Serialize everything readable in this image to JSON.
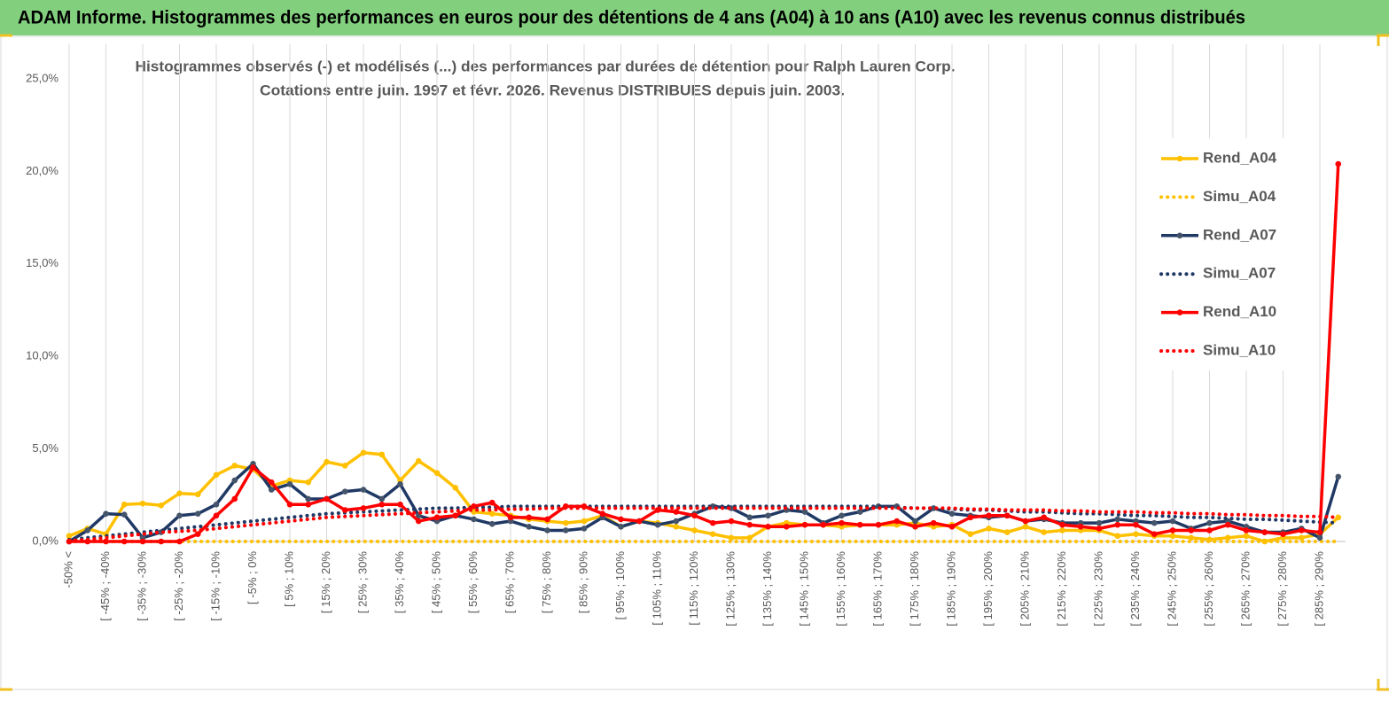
{
  "chart_data": {
    "type": "line",
    "title": "ADAM Informe. Histogrammes des performances en euros pour des détentions de 4 ans (A04) à 10 ans (A10) avec les revenus connus distribués",
    "subtitle": [
      "Histogrammes observés (-) et modélisés (...) des performances par durées de détention pour Ralph Lauren Corp.",
      "Cotations entre juin. 1997 et févr. 2026. Revenus DISTRIBUES depuis juin. 2003."
    ],
    "categories": [
      "-50% <",
      null,
      "[ -45% ; -40%",
      null,
      "[ -35% ; -30%",
      null,
      "[ -25% ; -20%",
      null,
      "[ -15% ; -10%",
      null,
      "[ -5% ; 0%",
      null,
      "[ 5% ; 10%",
      null,
      "[ 15% ; 20%",
      null,
      "[ 25% ; 30%",
      null,
      "[ 35% ; 40%",
      null,
      "[ 45% ; 50%",
      null,
      "[ 55% ; 60%",
      null,
      "[ 65% ; 70%",
      null,
      "[ 75% ; 80%",
      null,
      "[ 85% ; 90%",
      null,
      "[ 95% ; 100%",
      null,
      "[ 105% ; 110%",
      null,
      "[ 115% ; 120%",
      null,
      "[ 125% ; 130%",
      null,
      "[ 135% ; 140%",
      null,
      "[ 145% ; 150%",
      null,
      "[ 155% ; 160%",
      null,
      "[ 165% ; 170%",
      null,
      "[ 175% ; 180%",
      null,
      "[ 185% ; 190%",
      null,
      "[ 195% ; 200%",
      null,
      "[ 205% ; 210%",
      null,
      "[ 215% ; 220%",
      null,
      "[ 225% ; 230%",
      null,
      "[ 235% ; 240%",
      null,
      "[ 245% ; 250%",
      null,
      "[ 255% ; 260%",
      null,
      "[ 265% ; 270%",
      null,
      "[ 275% ; 280%",
      null,
      "[ 285% ; 290%",
      null
    ],
    "ylim": [
      0,
      25
    ],
    "yticks": [
      {
        "value": 0,
        "label": "0,0%"
      },
      {
        "value": 5,
        "label": "5,0%"
      },
      {
        "value": 10,
        "label": "10,0%"
      },
      {
        "value": 15,
        "label": "15,0%"
      },
      {
        "value": 20,
        "label": "20,0%"
      },
      {
        "value": 25,
        "label": "25,0%"
      }
    ],
    "grid": "x",
    "legend": "right",
    "series": [
      {
        "name": "Rend_A04",
        "color": "#ffc000",
        "style": "solid",
        "marker": true,
        "values": [
          0.3,
          0.7,
          0.4,
          2.0,
          2.05,
          1.95,
          2.6,
          2.55,
          3.6,
          4.1,
          3.9,
          3.0,
          3.3,
          3.2,
          4.3,
          4.1,
          4.8,
          4.7,
          3.3,
          4.35,
          3.7,
          2.9,
          1.6,
          1.5,
          1.4,
          1.2,
          1.1,
          1.0,
          1.1,
          1.4,
          0.8,
          1.1,
          1.0,
          0.8,
          0.6,
          0.4,
          0.2,
          0.2,
          0.8,
          1.0,
          0.9,
          0.9,
          0.8,
          0.9,
          0.9,
          0.9,
          1.0,
          0.8,
          0.9,
          0.4,
          0.7,
          0.5,
          0.8,
          0.5,
          0.6,
          0.6,
          0.6,
          0.3,
          0.4,
          0.3,
          0.3,
          0.2,
          0.1,
          0.2,
          0.3,
          0.0,
          0.2,
          0.2,
          0.4,
          1.3
        ]
      },
      {
        "name": "Simu_A04",
        "color": "#ffc000",
        "style": "dotted",
        "marker": false,
        "values": [
          0,
          0,
          0,
          0,
          0,
          0,
          0,
          0,
          0,
          0,
          0,
          0,
          0,
          0,
          0,
          0,
          0,
          0,
          0,
          0,
          0,
          0,
          0,
          0,
          0,
          0,
          0,
          0,
          0,
          0,
          0,
          0,
          0,
          0,
          0,
          0,
          0,
          0,
          0,
          0,
          0,
          0,
          0,
          0,
          0,
          0,
          0,
          0,
          0,
          0,
          0,
          0,
          0,
          0,
          0,
          0,
          0,
          0,
          0,
          0,
          0,
          0,
          0,
          0,
          0,
          0,
          0,
          0,
          0,
          0
        ]
      },
      {
        "name": "Rend_A07",
        "color": "#1f3864",
        "style": "solid",
        "marker": true,
        "values": [
          0.0,
          0.6,
          1.5,
          1.45,
          0.2,
          0.5,
          1.4,
          1.5,
          2.0,
          3.3,
          4.2,
          2.8,
          3.1,
          2.3,
          2.3,
          2.7,
          2.8,
          2.3,
          3.1,
          1.4,
          1.1,
          1.4,
          1.2,
          0.95,
          1.1,
          0.8,
          0.6,
          0.6,
          0.7,
          1.3,
          0.8,
          1.1,
          0.9,
          1.1,
          1.5,
          1.9,
          1.8,
          1.3,
          1.4,
          1.7,
          1.6,
          1.0,
          1.4,
          1.6,
          1.9,
          1.9,
          1.1,
          1.8,
          1.5,
          1.4,
          1.3,
          1.4,
          1.1,
          1.2,
          1.0,
          1.0,
          1.0,
          1.2,
          1.1,
          1.0,
          1.1,
          0.7,
          1.0,
          1.1,
          0.8,
          0.5,
          0.5,
          0.7,
          0.2,
          3.5
        ]
      },
      {
        "name": "Simu_A07",
        "color": "#1f3864",
        "style": "dotted",
        "marker": false,
        "values": [
          0.1,
          0.2,
          0.3,
          0.4,
          0.5,
          0.6,
          0.7,
          0.8,
          0.9,
          1.0,
          1.1,
          1.2,
          1.3,
          1.4,
          1.5,
          1.55,
          1.6,
          1.65,
          1.7,
          1.75,
          1.8,
          1.8,
          1.85,
          1.85,
          1.9,
          1.9,
          1.9,
          1.9,
          1.9,
          1.9,
          1.9,
          1.9,
          1.9,
          1.9,
          1.9,
          1.9,
          1.9,
          1.9,
          1.9,
          1.9,
          1.9,
          1.9,
          1.9,
          1.9,
          1.9,
          1.85,
          1.8,
          1.8,
          1.75,
          1.7,
          1.7,
          1.65,
          1.6,
          1.6,
          1.55,
          1.5,
          1.5,
          1.45,
          1.4,
          1.4,
          1.35,
          1.3,
          1.3,
          1.25,
          1.2,
          1.2,
          1.15,
          1.1,
          1.05,
          1.0
        ]
      },
      {
        "name": "Rend_A10",
        "color": "#ff0000",
        "style": "solid",
        "marker": true,
        "values": [
          0,
          0,
          0,
          0,
          0,
          0,
          0,
          0.4,
          1.4,
          2.3,
          4.0,
          3.2,
          2.0,
          2.0,
          2.3,
          1.7,
          1.8,
          2.0,
          2.0,
          1.1,
          1.3,
          1.4,
          1.9,
          2.1,
          1.3,
          1.3,
          1.2,
          1.9,
          1.9,
          1.5,
          1.2,
          1.1,
          1.7,
          1.6,
          1.4,
          1.0,
          1.1,
          0.9,
          0.8,
          0.8,
          0.9,
          0.9,
          1.0,
          0.9,
          0.9,
          1.1,
          0.8,
          1.0,
          0.8,
          1.3,
          1.4,
          1.4,
          1.1,
          1.3,
          0.9,
          0.8,
          0.7,
          0.9,
          0.9,
          0.4,
          0.6,
          0.6,
          0.6,
          0.9,
          0.6,
          0.5,
          0.4,
          0.6,
          0.5,
          20.4
        ]
      },
      {
        "name": "Simu_A10",
        "color": "#ff0000",
        "style": "dotted",
        "marker": false,
        "values": [
          0.05,
          0.1,
          0.2,
          0.3,
          0.4,
          0.5,
          0.55,
          0.6,
          0.7,
          0.8,
          0.9,
          1.0,
          1.1,
          1.2,
          1.3,
          1.35,
          1.4,
          1.45,
          1.5,
          1.55,
          1.6,
          1.65,
          1.7,
          1.7,
          1.75,
          1.75,
          1.8,
          1.8,
          1.8,
          1.8,
          1.8,
          1.8,
          1.8,
          1.8,
          1.8,
          1.8,
          1.8,
          1.8,
          1.8,
          1.8,
          1.8,
          1.8,
          1.8,
          1.8,
          1.8,
          1.8,
          1.8,
          1.8,
          1.8,
          1.75,
          1.75,
          1.7,
          1.7,
          1.7,
          1.65,
          1.65,
          1.6,
          1.6,
          1.6,
          1.55,
          1.55,
          1.5,
          1.5,
          1.45,
          1.45,
          1.4,
          1.4,
          1.35,
          1.35,
          1.3
        ]
      }
    ]
  }
}
